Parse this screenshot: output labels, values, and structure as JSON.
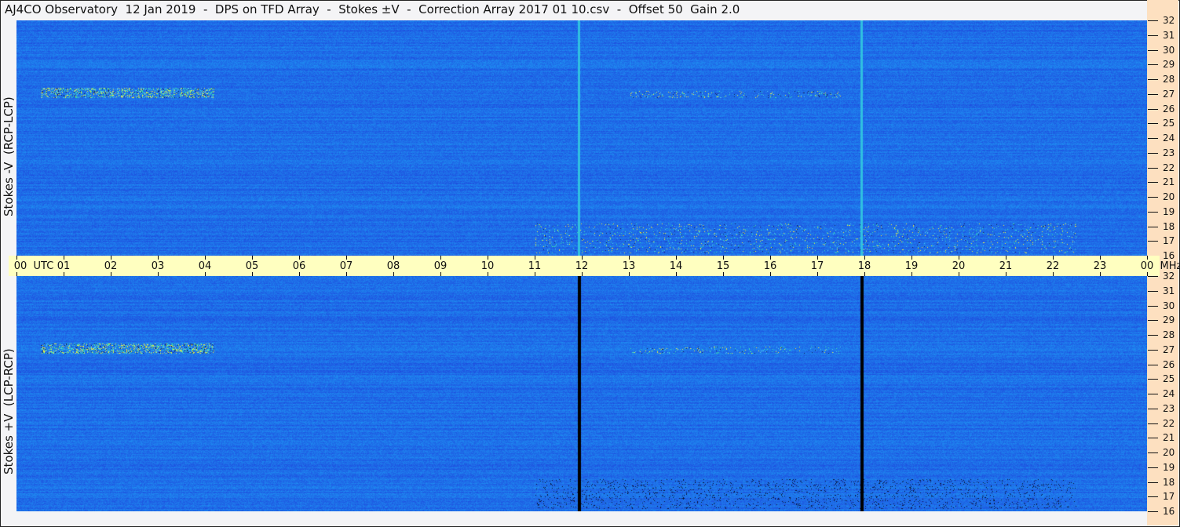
{
  "title": "AJ4CO Observatory  12 Jan 2019  -  DPS on TFD Array  -  Stokes ±V  -  Correction Array 2017 01 10.csv  -  Offset 50  Gain 2.0",
  "chart_data": [
    {
      "type": "heatmap",
      "ylabel": "Stokes -V  (RCP-LCP)",
      "x_unit": "UTC",
      "y_unit": "MHz",
      "xlim": [
        0,
        24
      ],
      "ylim": [
        16,
        32
      ],
      "vertical_lines_utc": [
        11.95,
        17.95
      ],
      "vertical_line_color": "#30c0e0",
      "background_color": "#1e6ee8"
    },
    {
      "type": "heatmap",
      "ylabel": "Stokes +V  (LCP-RCP)",
      "x_unit": "UTC",
      "y_unit": "MHz",
      "xlim": [
        0,
        24
      ],
      "ylim": [
        16,
        32
      ],
      "vertical_lines_utc": [
        11.95,
        17.95
      ],
      "vertical_line_color": "#000000",
      "background_color": "#1e6ee8"
    }
  ],
  "time_ticks": [
    "00  UTC",
    "01",
    "02",
    "03",
    "04",
    "05",
    "06",
    "07",
    "08",
    "09",
    "10",
    "11",
    "12",
    "13",
    "14",
    "15",
    "16",
    "17",
    "18",
    "19",
    "20",
    "21",
    "22",
    "23",
    "00  MHz"
  ],
  "freq_ticks": [
    "32",
    "31",
    "30",
    "29",
    "28",
    "27",
    "26",
    "25",
    "24",
    "23",
    "22",
    "21",
    "20",
    "19",
    "18",
    "17",
    "16"
  ]
}
